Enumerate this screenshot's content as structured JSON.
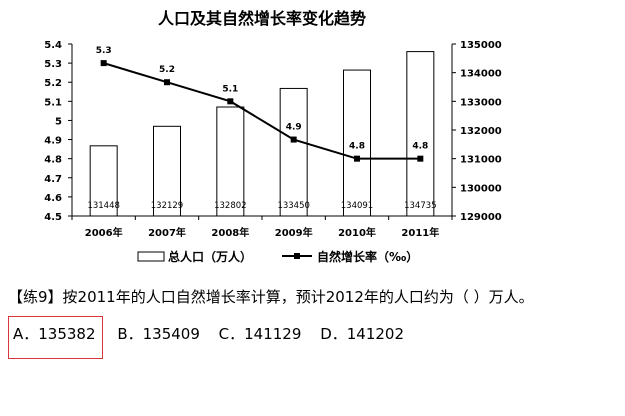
{
  "chart_data": {
    "type": "bar+line",
    "title": "人口及其自然增长率变化趋势",
    "categories": [
      "2006年",
      "2007年",
      "2008年",
      "2009年",
      "2010年",
      "2011年"
    ],
    "series": [
      {
        "name": "总人口（万人）",
        "type": "bar",
        "axis": "right",
        "values": [
          131448,
          132129,
          132802,
          133450,
          134091,
          134735
        ],
        "value_labels": [
          "131448",
          "132129",
          "132802",
          "133450",
          "134091",
          "134735"
        ]
      },
      {
        "name": "自然增长率（‰）",
        "type": "line",
        "axis": "left",
        "values": [
          5.3,
          5.2,
          5.1,
          4.9,
          4.8,
          4.8
        ],
        "value_labels": [
          "5.3",
          "5.2",
          "5.1",
          "4.9",
          "4.8",
          "4.8"
        ]
      }
    ],
    "y_left": {
      "ylim": [
        4.5,
        5.4
      ],
      "ticks": [
        "4.5",
        "4.6",
        "4.7",
        "4.8",
        "4.9",
        "5",
        "5.1",
        "5.2",
        "5.3",
        "5.4"
      ]
    },
    "y_right": {
      "ylim": [
        129000,
        135000
      ],
      "ticks": [
        "129000",
        "130000",
        "131000",
        "132000",
        "133000",
        "134000",
        "135000"
      ]
    },
    "legend": [
      "总人口（万人）",
      "自然增长率（‰）"
    ],
    "legend_position": "bottom",
    "grid": false
  },
  "question": {
    "text": "【练9】按2011年的人口自然增长率计算，预计2012年的人口约为（ ）万人。",
    "options": [
      {
        "label": "A．135382",
        "selected": true
      },
      {
        "label": "B．135409",
        "selected": false
      },
      {
        "label": "C．141129",
        "selected": false
      },
      {
        "label": "D．141202",
        "selected": false
      }
    ]
  },
  "colors": {
    "bar_fill": "#ffffff",
    "bar_stroke": "#000000",
    "line": "#000000",
    "highlight": "#d9363e"
  }
}
